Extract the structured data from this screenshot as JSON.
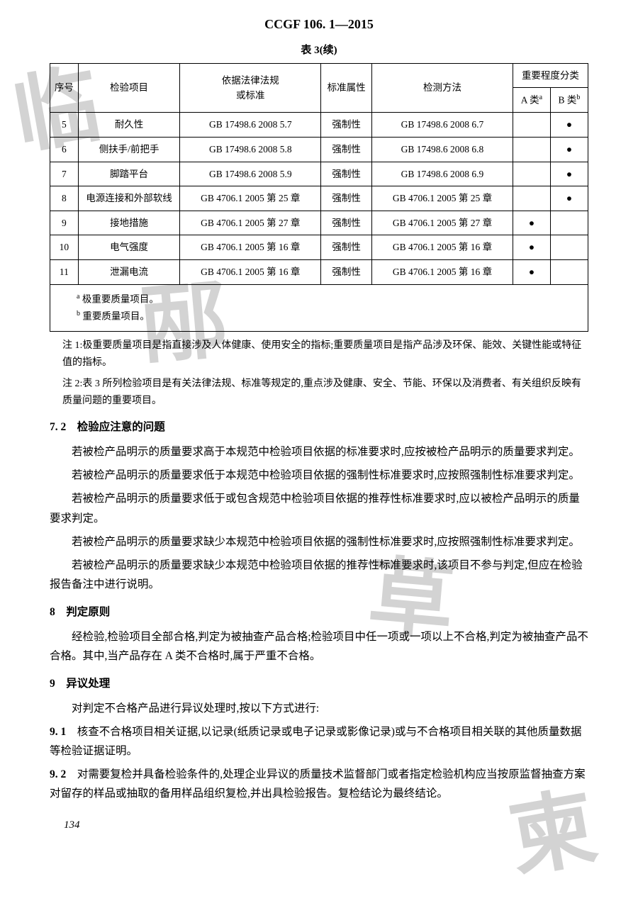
{
  "header": "CCGF 106. 1—2015",
  "table_caption": "表 3(续)",
  "table": {
    "headers": {
      "seq": "序号",
      "item": "检验项目",
      "basis": "依据法律法规\n或标准",
      "attr": "标准属性",
      "method": "检测方法",
      "importance": "重要程度分类",
      "classA": "A 类",
      "classA_sup": "a",
      "classB": "B 类",
      "classB_sup": "b"
    },
    "rows": [
      {
        "seq": "5",
        "item": "耐久性",
        "basis": "GB 17498.6  2008  5.7",
        "attr": "强制性",
        "method": "GB 17498.6  2008  6.7",
        "a": "",
        "b": "●"
      },
      {
        "seq": "6",
        "item": "侧扶手/前把手",
        "basis": "GB 17498.6  2008  5.8",
        "attr": "强制性",
        "method": "GB 17498.6  2008  6.8",
        "a": "",
        "b": "●"
      },
      {
        "seq": "7",
        "item": "脚踏平台",
        "basis": "GB 17498.6  2008  5.9",
        "attr": "强制性",
        "method": "GB 17498.6  2008  6.9",
        "a": "",
        "b": "●"
      },
      {
        "seq": "8",
        "item": "电源连接和外部软线",
        "basis": "GB 4706.1  2005 第 25 章",
        "attr": "强制性",
        "method": "GB 4706.1  2005 第 25 章",
        "a": "",
        "b": "●"
      },
      {
        "seq": "9",
        "item": "接地措施",
        "basis": "GB 4706.1  2005 第 27 章",
        "attr": "强制性",
        "method": "GB 4706.1  2005 第 27 章",
        "a": "●",
        "b": ""
      },
      {
        "seq": "10",
        "item": "电气强度",
        "basis": "GB 4706.1  2005 第 16 章",
        "attr": "强制性",
        "method": "GB 4706.1  2005 第 16 章",
        "a": "●",
        "b": ""
      },
      {
        "seq": "11",
        "item": "泄漏电流",
        "basis": "GB 4706.1  2005 第 16 章",
        "attr": "强制性",
        "method": "GB 4706.1  2005 第 16 章",
        "a": "●",
        "b": ""
      }
    ],
    "footnote_a": "极重要质量项目。",
    "footnote_a_sup": "a",
    "footnote_b": "重要质量项目。",
    "footnote_b_sup": "b"
  },
  "note1": "注 1:极重要质量项目是指直接涉及人体健康、使用安全的指标;重要质量项目是指产品涉及环保、能效、关键性能或特征值的指标。",
  "note2": "注 2:表 3 所列检验项目是有关法律法规、标准等规定的,重点涉及健康、安全、节能、环保以及消费者、有关组织反映有质量问题的重要项目。",
  "sec72_heading": "7. 2　检验应注意的问题",
  "sec72_p1": "若被检产品明示的质量要求高于本规范中检验项目依据的标准要求时,应按被检产品明示的质量要求判定。",
  "sec72_p2": "若被检产品明示的质量要求低于本规范中检验项目依据的强制性标准要求时,应按照强制性标准要求判定。",
  "sec72_p3": "若被检产品明示的质量要求低于或包含规范中检验项目依据的推荐性标准要求时,应以被检产品明示的质量要求判定。",
  "sec72_p4": "若被检产品明示的质量要求缺少本规范中检验项目依据的强制性标准要求时,应按照强制性标准要求判定。",
  "sec72_p5": "若被检产品明示的质量要求缺少本规范中检验项目依据的推荐性标准要求时,该项目不参与判定,但应在检验报告备注中进行说明。",
  "sec8_heading": "8　判定原则",
  "sec8_p1": "经检验,检验项目全部合格,判定为被抽查产品合格;检验项目中任一项或一项以上不合格,判定为被抽查产品不合格。其中,当产品存在 A 类不合格时,属于严重不合格。",
  "sec9_heading": "9　异议处理",
  "sec9_p0": "对判定不合格产品进行异议处理时,按以下方式进行:",
  "sec91_head": "9. 1",
  "sec91_body": "　核查不合格项目相关证据,以记录(纸质记录或电子记录或影像记录)或与不合格项目相关联的其他质量数据等检验证据证明。",
  "sec92_head": "9. 2",
  "sec92_body": "　对需要复检并具备检验条件的,处理企业异议的质量技术监督部门或者指定检验机构应当按原监督抽查方案对留存的样品或抽取的备用样品组织复检,并出具检验报告。复检结论为最终结论。",
  "page_number": "134",
  "watermarks": {
    "wm1": "临",
    "wm2": "邴",
    "wm3": "草",
    "wm4": "柬"
  }
}
